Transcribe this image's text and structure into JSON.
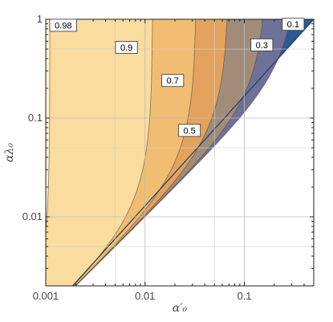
{
  "chart_data": {
    "type": "contour",
    "x_scale": "log",
    "y_scale": "log",
    "xlim": [
      0.001,
      0.5
    ],
    "ylim": [
      0.002,
      1
    ],
    "xlabel": "α′₀",
    "ylabel": "αλ₀",
    "x_ticks": [
      {
        "value": 0.001,
        "label": "0.001"
      },
      {
        "value": 0.01,
        "label": "0.01"
      },
      {
        "value": 0.1,
        "label": "0.1"
      }
    ],
    "y_ticks": [
      {
        "value": 0.01,
        "label": "0.01"
      },
      {
        "value": 0.1,
        "label": "0.1"
      },
      {
        "value": 1,
        "label": "1"
      }
    ],
    "grid": true,
    "contour_levels": [
      {
        "value": 0.98,
        "label": "0.98",
        "color": "#FCEEC0"
      },
      {
        "value": 0.9,
        "label": "0.9",
        "color": "#F9DC9E"
      },
      {
        "value": 0.7,
        "label": "0.7",
        "color": "#F1BD72"
      },
      {
        "value": 0.5,
        "label": "0.5",
        "color": "#E3A25D"
      },
      {
        "value": 0.3,
        "label": "0.3",
        "color": "#A18C7A"
      },
      {
        "value": 0.1,
        "label": "0.1",
        "color": "#6E7299"
      }
    ],
    "base_color": "#FFF3D0",
    "edge_color": "#2D5A92",
    "label_positions": [
      {
        "label": "0.98",
        "x": 0.0015,
        "y": 0.87
      },
      {
        "label": "0.9",
        "x": 0.0065,
        "y": 0.52
      },
      {
        "label": "0.7",
        "x": 0.019,
        "y": 0.24
      },
      {
        "label": "0.5",
        "x": 0.028,
        "y": 0.075
      },
      {
        "label": "0.3",
        "x": 0.15,
        "y": 0.55
      },
      {
        "label": "0.1",
        "x": 0.31,
        "y": 0.89
      }
    ]
  }
}
